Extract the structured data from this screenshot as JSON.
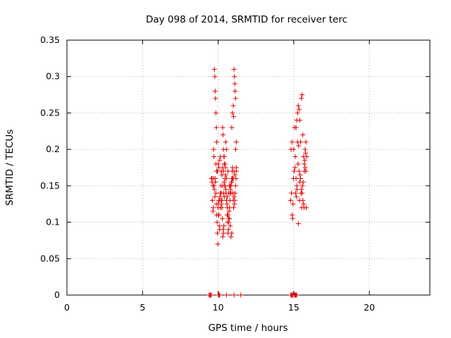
{
  "chart_data": {
    "type": "scatter",
    "title": "Day 098 of 2014, SRMTID for receiver terc",
    "xlabel": "GPS time / hours",
    "ylabel": "SRMTID / TECUs",
    "xlim": [
      0,
      24
    ],
    "ylim": [
      0,
      0.35
    ],
    "x_ticks": [
      "0",
      "5",
      "10",
      "15",
      "20"
    ],
    "y_ticks": [
      "0",
      "0.05",
      "0.1",
      "0.15",
      "0.2",
      "0.25",
      "0.3",
      "0.35"
    ],
    "x_tick_values": [
      0,
      5,
      10,
      15,
      20
    ],
    "y_tick_values": [
      0,
      0.05,
      0.1,
      0.15,
      0.2,
      0.25,
      0.3,
      0.35
    ],
    "grid": true,
    "legend": "none",
    "marker": "plus",
    "color": "#e00000",
    "series": [
      {
        "x": [
          9.55,
          9.6,
          9.62,
          9.65,
          9.68,
          9.7,
          9.72,
          9.75,
          9.78,
          9.8,
          9.82,
          9.85,
          9.88,
          9.9,
          9.93,
          9.95,
          9.98,
          10.0,
          10.02,
          10.05,
          10.08,
          10.1,
          10.12,
          10.15,
          10.18,
          10.2,
          10.22,
          10.25,
          10.28,
          10.3,
          10.33,
          10.35,
          10.38,
          10.4,
          10.43,
          10.45,
          10.48,
          10.5,
          10.52,
          10.55,
          10.58,
          10.6,
          10.62,
          10.65,
          10.68,
          10.7,
          10.72,
          10.75,
          10.78,
          10.8,
          10.82,
          10.85,
          10.88,
          10.9,
          10.93,
          10.95,
          10.98,
          11.0,
          11.02,
          11.05,
          11.08,
          11.1,
          11.12,
          11.15,
          11.18,
          11.2,
          9.75,
          9.78,
          9.8,
          9.82,
          9.85,
          9.88,
          9.9,
          10.3,
          10.32,
          10.35,
          10.38,
          10.4,
          11.05,
          11.08,
          11.1,
          11.12,
          11.15,
          11.0,
          11.02,
          10.95,
          10.9,
          10.0,
          10.05,
          10.1,
          10.15,
          10.2,
          10.25,
          10.6,
          10.65,
          10.7,
          10.75,
          10.8,
          10.85,
          10.9,
          9.7,
          9.72,
          9.95,
          10.5,
          10.55,
          10.45,
          10.4,
          10.35,
          10.3,
          11.15,
          11.2,
          9.65,
          9.6,
          9.85,
          9.9,
          10.0,
          10.1,
          10.2,
          10.3,
          10.4,
          10.5,
          10.6,
          10.7,
          10.8,
          10.9,
          11.0,
          11.1,
          11.2,
          10.05,
          10.15,
          10.25,
          10.35,
          10.45,
          10.55,
          10.65,
          10.75,
          10.85,
          10.95,
          11.05
        ],
        "y": [
          0.16,
          0.155,
          0.13,
          0.115,
          0.12,
          0.16,
          0.15,
          0.145,
          0.135,
          0.16,
          0.155,
          0.14,
          0.125,
          0.11,
          0.1,
          0.085,
          0.07,
          0.12,
          0.11,
          0.13,
          0.095,
          0.09,
          0.135,
          0.14,
          0.15,
          0.13,
          0.125,
          0.12,
          0.105,
          0.08,
          0.09,
          0.085,
          0.095,
          0.135,
          0.15,
          0.16,
          0.175,
          0.165,
          0.14,
          0.13,
          0.125,
          0.11,
          0.1,
          0.085,
          0.09,
          0.105,
          0.115,
          0.12,
          0.13,
          0.14,
          0.145,
          0.15,
          0.155,
          0.16,
          0.17,
          0.175,
          0.14,
          0.13,
          0.12,
          0.135,
          0.125,
          0.13,
          0.14,
          0.15,
          0.16,
          0.17,
          0.31,
          0.3,
          0.28,
          0.27,
          0.25,
          0.23,
          0.21,
          0.23,
          0.22,
          0.2,
          0.19,
          0.18,
          0.31,
          0.3,
          0.29,
          0.28,
          0.27,
          0.26,
          0.245,
          0.25,
          0.23,
          0.18,
          0.175,
          0.185,
          0.19,
          0.17,
          0.165,
          0.12,
          0.11,
          0.1,
          0.105,
          0.095,
          0.08,
          0.085,
          0.2,
          0.19,
          0.17,
          0.21,
          0.2,
          0.18,
          0.19,
          0.17,
          0.175,
          0.2,
          0.21,
          0.15,
          0.16,
          0.18,
          0.17,
          0.125,
          0.13,
          0.14,
          0.15,
          0.155,
          0.145,
          0.135,
          0.14,
          0.15,
          0.155,
          0.16,
          0.165,
          0.175,
          0.11,
          0.12,
          0.13,
          0.14,
          0.15,
          0.16,
          0.17,
          0.15,
          0.14,
          0.16,
          0.17
        ]
      },
      {
        "x": [
          14.8,
          14.85,
          14.9,
          14.95,
          15.0,
          15.05,
          15.1,
          15.15,
          15.2,
          15.25,
          15.3,
          15.35,
          15.4,
          15.45,
          15.5,
          15.55,
          15.6,
          15.65,
          15.7,
          15.75,
          15.8,
          15.85,
          14.82,
          14.88,
          14.92,
          14.98,
          15.02,
          15.08,
          15.12,
          15.18,
          15.22,
          15.28,
          15.32,
          15.38,
          15.42,
          15.48,
          15.52,
          15.58,
          15.62,
          15.68,
          15.72,
          15.78,
          15.82,
          15.3,
          15.35,
          15.4,
          15.45,
          15.5,
          15.55,
          15.6,
          15.65,
          15.7,
          15.75,
          15.8,
          15.15,
          15.2,
          15.25
        ],
        "y": [
          0.13,
          0.14,
          0.11,
          0.125,
          0.2,
          0.23,
          0.19,
          0.16,
          0.15,
          0.21,
          0.26,
          0.255,
          0.24,
          0.21,
          0.27,
          0.275,
          0.22,
          0.19,
          0.18,
          0.2,
          0.17,
          0.19,
          0.2,
          0.21,
          0.105,
          0.16,
          0.17,
          0.175,
          0.14,
          0.135,
          0.145,
          0.18,
          0.205,
          0.13,
          0.165,
          0.14,
          0.12,
          0.15,
          0.155,
          0.12,
          0.185,
          0.195,
          0.12,
          0.098,
          0.17,
          0.155,
          0.16,
          0.145,
          0.14,
          0.13,
          0.125,
          0.17,
          0.175,
          0.21,
          0.23,
          0.24,
          0.25
        ]
      }
    ],
    "zero_points": {
      "x": [
        9.4,
        9.45,
        9.5,
        9.55,
        10.02,
        10.06,
        10.1,
        10.55,
        11.05,
        11.5,
        14.8,
        14.85,
        14.9,
        14.95,
        15.05,
        15.1,
        15.15,
        15.2
      ],
      "y": [
        0,
        0,
        0,
        0,
        0,
        0,
        0,
        0,
        0,
        0,
        0,
        0,
        0,
        0,
        0,
        0,
        0,
        0
      ]
    }
  }
}
